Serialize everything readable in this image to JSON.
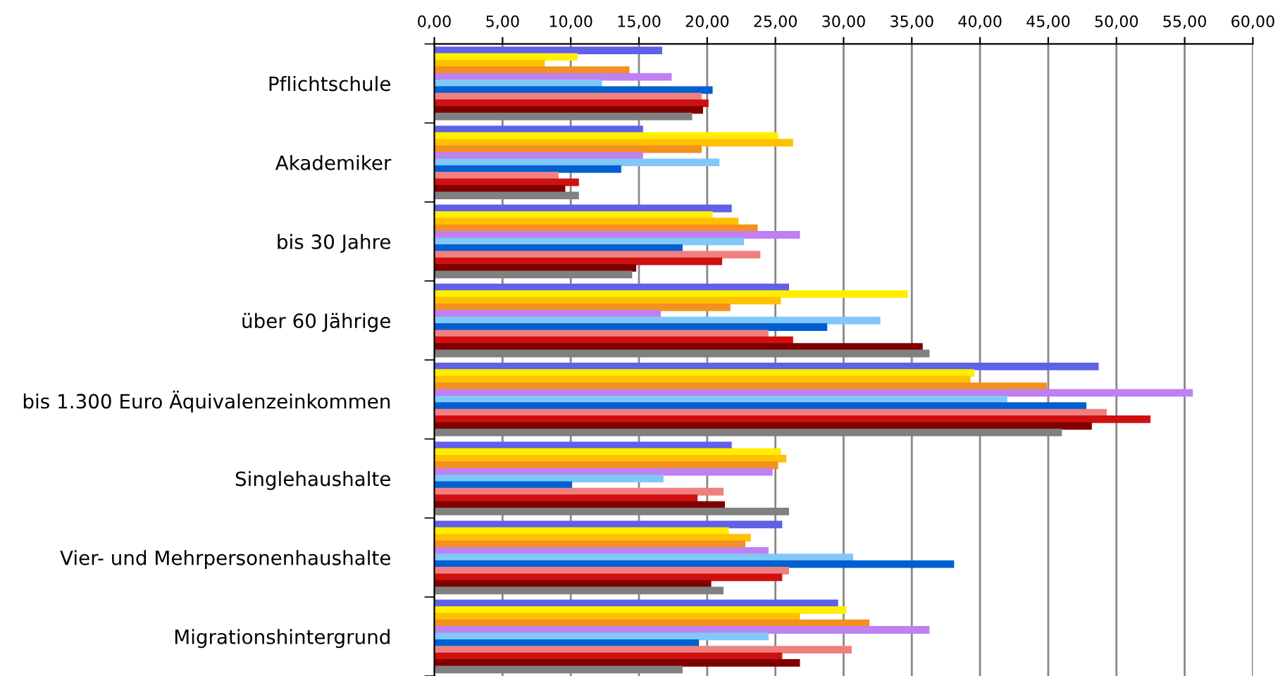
{
  "chart_data": {
    "type": "bar",
    "orientation": "horizontal",
    "categories": [
      "Pflichtschule",
      "Akademiker",
      "bis 30 Jahre",
      "über 60 Jährige",
      "bis 1.300 Euro Äquivalenzeinkommen",
      "Singlehaushalte",
      "Vier- und Mehrpersonenhaushalte",
      "Migrationshintergrund"
    ],
    "series": [
      {
        "color": "#6060e8",
        "values": [
          16.7,
          15.3,
          21.8,
          26.0,
          48.7,
          21.8,
          25.5,
          29.6
        ]
      },
      {
        "color": "#ffee00",
        "values": [
          10.5,
          25.2,
          20.4,
          34.7,
          39.6,
          25.4,
          21.6,
          30.2
        ]
      },
      {
        "color": "#ffc000",
        "values": [
          8.1,
          26.3,
          22.3,
          25.4,
          39.3,
          25.8,
          23.2,
          26.8
        ]
      },
      {
        "color": "#f39020",
        "values": [
          14.3,
          19.6,
          23.7,
          21.7,
          44.9,
          25.2,
          22.8,
          31.9
        ]
      },
      {
        "color": "#c080f0",
        "values": [
          17.4,
          15.3,
          26.8,
          16.6,
          55.6,
          24.8,
          24.5,
          36.3
        ]
      },
      {
        "color": "#80c8f8",
        "values": [
          12.3,
          20.9,
          22.7,
          32.7,
          42.0,
          16.8,
          30.7,
          24.5
        ]
      },
      {
        "color": "#0060d0",
        "values": [
          20.4,
          13.7,
          18.2,
          28.8,
          47.8,
          10.1,
          38.1,
          19.4
        ]
      },
      {
        "color": "#f08080",
        "values": [
          19.6,
          9.1,
          23.9,
          24.5,
          49.3,
          21.2,
          26.0,
          30.6
        ]
      },
      {
        "color": "#d01010",
        "values": [
          20.1,
          10.6,
          21.1,
          26.3,
          52.5,
          19.3,
          25.5,
          25.5
        ]
      },
      {
        "color": "#800000",
        "values": [
          19.7,
          9.6,
          14.8,
          35.8,
          48.2,
          21.3,
          20.3,
          26.8
        ]
      },
      {
        "color": "#808080",
        "values": [
          18.9,
          10.6,
          14.5,
          36.3,
          46.0,
          26.0,
          21.2,
          18.2
        ]
      }
    ],
    "xlim": [
      0,
      60
    ],
    "xticks": [
      {
        "value": 0,
        "label": "0,00"
      },
      {
        "value": 5,
        "label": "5,00"
      },
      {
        "value": 10,
        "label": "10,00"
      },
      {
        "value": 15,
        "label": "15,00"
      },
      {
        "value": 20,
        "label": "20,00"
      },
      {
        "value": 25,
        "label": "25,00"
      },
      {
        "value": 30,
        "label": "30,00"
      },
      {
        "value": 35,
        "label": "35,00"
      },
      {
        "value": 40,
        "label": "40,00"
      },
      {
        "value": 45,
        "label": "45,00"
      },
      {
        "value": 50,
        "label": "50,00"
      },
      {
        "value": 55,
        "label": "55,00"
      },
      {
        "value": 60,
        "label": "60,00"
      }
    ],
    "grid": "x",
    "legend": false
  }
}
